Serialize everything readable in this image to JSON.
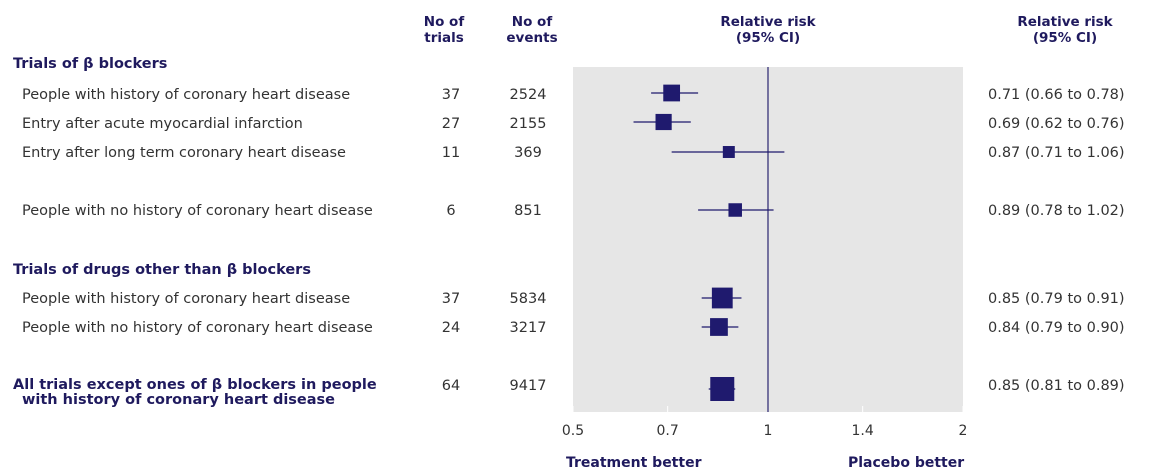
{
  "headers": {
    "trials": [
      "No of",
      "trials"
    ],
    "events": [
      "No of",
      "events"
    ],
    "rr_plot": [
      "Relative risk",
      "(95% CI)"
    ],
    "rr_text": [
      "Relative risk",
      "(95% CI)"
    ]
  },
  "footer": {
    "left": "Treatment better",
    "right": "Placebo better"
  },
  "groups": [
    {
      "label": "Trials of β blockers"
    },
    {
      "label": "Trials of drugs other than β blockers"
    }
  ],
  "rows": [
    {
      "label": "People with history of coronary heart disease",
      "trials": "37",
      "events": "2524",
      "ci_text": "0.71 (0.66 to 0.78)"
    },
    {
      "label": "Entry after acute myocardial infarction",
      "trials": "27",
      "events": "2155",
      "ci_text": "0.69 (0.62 to 0.76)"
    },
    {
      "label": "Entry after long term coronary heart disease",
      "trials": "11",
      "events": "369",
      "ci_text": "0.87 (0.71 to 1.06)"
    },
    {
      "label": "People with no history of coronary heart disease",
      "trials": "6",
      "events": "851",
      "ci_text": "0.89 (0.78 to 1.02)"
    },
    {
      "label": "People with history of coronary heart disease",
      "trials": "37",
      "events": "5834",
      "ci_text": "0.85 (0.79 to 0.91)"
    },
    {
      "label": "People with no history of coronary heart disease",
      "trials": "24",
      "events": "3217",
      "ci_text": "0.84 (0.79 to 0.90)"
    },
    {
      "label": [
        "All trials except ones of β blockers in people",
        "with history of coronary heart disease"
      ],
      "trials": "64",
      "events": "9417",
      "ci_text": "0.85 (0.81 to 0.89)"
    }
  ],
  "chart_data": {
    "type": "forest",
    "x_scale": "log",
    "xlim": [
      0.5,
      2
    ],
    "ticks": [
      0.5,
      0.7,
      1,
      1.4,
      2
    ],
    "tick_labels": [
      "0.5",
      "0.7",
      "1",
      "1.4",
      "2"
    ],
    "reference_line": 1,
    "series": [
      {
        "estimate": 0.71,
        "lower": 0.66,
        "upper": 0.78,
        "events": 2524
      },
      {
        "estimate": 0.69,
        "lower": 0.62,
        "upper": 0.76,
        "events": 2155
      },
      {
        "estimate": 0.87,
        "lower": 0.71,
        "upper": 1.06,
        "events": 369
      },
      {
        "estimate": 0.89,
        "lower": 0.78,
        "upper": 1.02,
        "events": 851
      },
      {
        "estimate": 0.85,
        "lower": 0.79,
        "upper": 0.91,
        "events": 5834
      },
      {
        "estimate": 0.84,
        "lower": 0.79,
        "upper": 0.9,
        "events": 3217
      },
      {
        "estimate": 0.85,
        "lower": 0.81,
        "upper": 0.89,
        "events": 9417
      }
    ],
    "colors": {
      "marker": "#1f1a6e",
      "panel": "#e6e6e6",
      "ref_line": "#2a2470",
      "header": "#1f1a5e"
    }
  }
}
